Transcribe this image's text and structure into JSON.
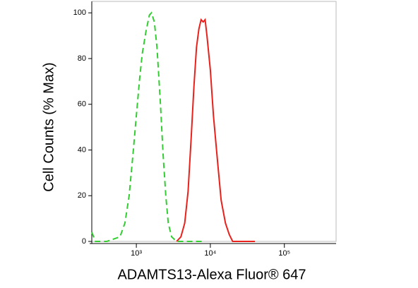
{
  "chart_data": {
    "type": "line",
    "xlabel": "ADAMTS13-Alexa Fluor® 647",
    "ylabel": "Cell Counts (% Max)",
    "xscale": "log",
    "xlim": [
      250,
      500000
    ],
    "ylim": [
      0,
      105
    ],
    "xticks": [
      {
        "value": 1000,
        "label": "10³"
      },
      {
        "value": 10000,
        "label": "10⁴"
      },
      {
        "value": 100000,
        "label": "10⁵"
      }
    ],
    "yticks": [
      0,
      20,
      40,
      60,
      80,
      100
    ],
    "series": [
      {
        "color": "#33cc33",
        "dash": true,
        "x": [
          250,
          280,
          400,
          600,
          700,
          800,
          900,
          1000,
          1100,
          1200,
          1350,
          1500,
          1600,
          1750,
          1900,
          2100,
          2300,
          2500,
          2700,
          3000,
          3500,
          5000,
          8000
        ],
        "values": [
          4,
          0,
          0,
          2,
          8,
          20,
          38,
          55,
          70,
          82,
          92,
          99,
          100,
          96,
          85,
          62,
          38,
          20,
          8,
          2,
          0,
          0,
          0
        ]
      },
      {
        "color": "#e8211c",
        "dash": false,
        "x": [
          3500,
          4000,
          4500,
          5000,
          5500,
          6000,
          6500,
          7000,
          7500,
          8000,
          8500,
          9000,
          10000,
          11000,
          12500,
          14000,
          16000,
          18000,
          20000,
          30000,
          40000
        ],
        "values": [
          0,
          2,
          8,
          22,
          45,
          68,
          85,
          93,
          97,
          96,
          97,
          90,
          75,
          55,
          35,
          18,
          8,
          3,
          0,
          0,
          0
        ]
      }
    ]
  }
}
